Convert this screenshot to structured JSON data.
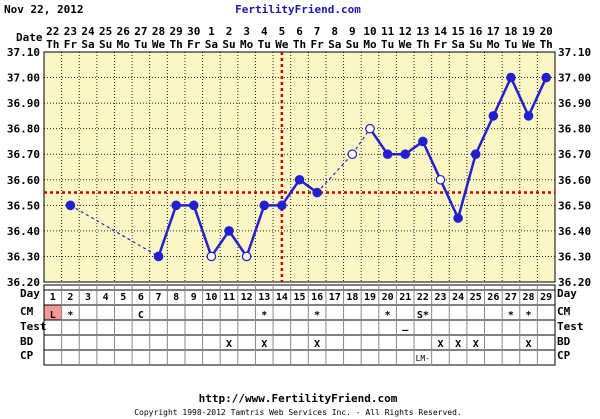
{
  "header": {
    "date": "Nov 22, 2012",
    "site": "FertilityFriend.com"
  },
  "labels": {
    "date": "Date",
    "day": "Day",
    "cm": "CM",
    "test": "Test",
    "bd": "BD",
    "cp": "CP"
  },
  "footer": {
    "url": "http://www.FertilityFriend.com",
    "copyright": "Copyright 1998-2012 Tamtris Web Services Inc. - All Rights Reserved."
  },
  "colors": {
    "plot_bg": "#fbf6c4",
    "grid": "#222222",
    "line": "#2020d0",
    "coverline": "#cc0000",
    "menses_fill": "#f59a9a"
  },
  "chart_data": {
    "type": "line",
    "dates": [
      "22",
      "23",
      "24",
      "25",
      "26",
      "27",
      "28",
      "29",
      "30",
      "1",
      "2",
      "3",
      "4",
      "5",
      "6",
      "7",
      "8",
      "9",
      "10",
      "11",
      "12",
      "13",
      "14",
      "15",
      "16",
      "17",
      "18",
      "19",
      "20"
    ],
    "weekdays": [
      "Th",
      "Fr",
      "Sa",
      "Su",
      "Mo",
      "Tu",
      "We",
      "Th",
      "Fr",
      "Sa",
      "Su",
      "Mo",
      "Tu",
      "We",
      "Th",
      "Fr",
      "Sa",
      "Su",
      "Mo",
      "Tu",
      "We",
      "Th",
      "Fr",
      "Sa",
      "Su",
      "Mo",
      "Tu",
      "We",
      "Th"
    ],
    "days": [
      1,
      2,
      3,
      4,
      5,
      6,
      7,
      8,
      9,
      10,
      11,
      12,
      13,
      14,
      15,
      16,
      17,
      18,
      19,
      20,
      21,
      22,
      23,
      24,
      25,
      26,
      27,
      28,
      29
    ],
    "temperatures": [
      null,
      36.5,
      null,
      null,
      null,
      null,
      36.3,
      36.5,
      36.5,
      36.3,
      36.4,
      36.3,
      36.5,
      36.5,
      36.6,
      36.55,
      null,
      36.7,
      36.8,
      36.7,
      36.7,
      36.75,
      36.6,
      36.45,
      36.7,
      36.85,
      37.0,
      36.85,
      37.0
    ],
    "open_points": [
      10,
      12,
      18,
      19,
      23
    ],
    "dashed_segments": [
      [
        2,
        7
      ],
      [
        16,
        18
      ],
      [
        18,
        19
      ]
    ],
    "y_ticks": [
      "37.10",
      "37.00",
      "36.90",
      "36.80",
      "36.70",
      "36.60",
      "36.50",
      "36.40",
      "36.30",
      "36.20"
    ],
    "ylim": [
      36.2,
      37.1
    ],
    "coverline": 36.55,
    "ovulation_day": 14,
    "rows": {
      "cm": {
        "1": "L",
        "2": "*",
        "6": "C",
        "13": "*",
        "16": "*",
        "20": "*",
        "22": "S*",
        "27": "*",
        "28": "*"
      },
      "test": {
        "21": "—"
      },
      "bd": {
        "11": "X",
        "13": "X",
        "16": "X",
        "23": "X",
        "24": "X",
        "25": "X",
        "28": "X"
      },
      "cp": {
        "22": "LM-"
      }
    }
  }
}
